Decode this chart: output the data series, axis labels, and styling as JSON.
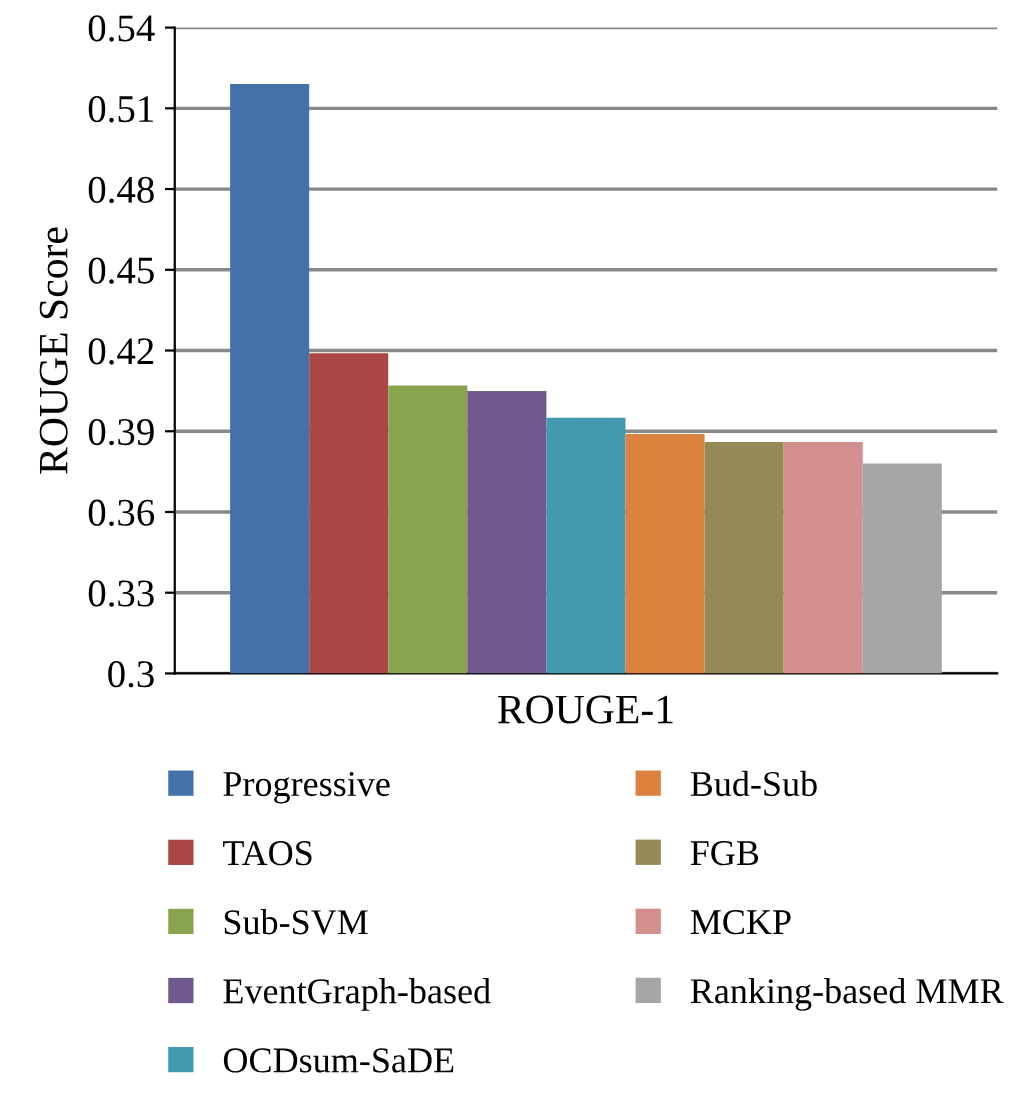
{
  "chart_data": {
    "type": "bar",
    "xlabel": "ROUGE-1",
    "ylabel": "ROUGE Score",
    "categories": [
      null
    ],
    "series": [
      {
        "name": "Progressive",
        "color": "#4472a8",
        "values": [
          0.519
        ]
      },
      {
        "name": "TAOS",
        "color": "#a94745",
        "values": [
          0.419
        ]
      },
      {
        "name": "Sub-SVM",
        "color": "#89a44e",
        "values": [
          0.407
        ]
      },
      {
        "name": "EventGraph-based",
        "color": "#70598f",
        "values": [
          0.405
        ]
      },
      {
        "name": "OCDsum-SaDE",
        "color": "#4299b0",
        "values": [
          0.395
        ]
      },
      {
        "name": "Bud-Sub",
        "color": "#db833e",
        "values": [
          0.389
        ]
      },
      {
        "name": "FGB",
        "color": "#938a55",
        "values": [
          0.386
        ]
      },
      {
        "name": "MCKP",
        "color": "#d28f8e",
        "values": [
          0.386
        ]
      },
      {
        "name": "Ranking-based MMR",
        "color": "#a5a5a5",
        "values": [
          0.378
        ]
      }
    ],
    "ylim": [
      0.3,
      0.54
    ],
    "yticks": [
      0.3,
      0.33,
      0.36,
      0.39,
      0.42,
      0.45,
      0.48,
      0.51,
      0.54
    ],
    "grid": "y",
    "legend": "bottom"
  }
}
